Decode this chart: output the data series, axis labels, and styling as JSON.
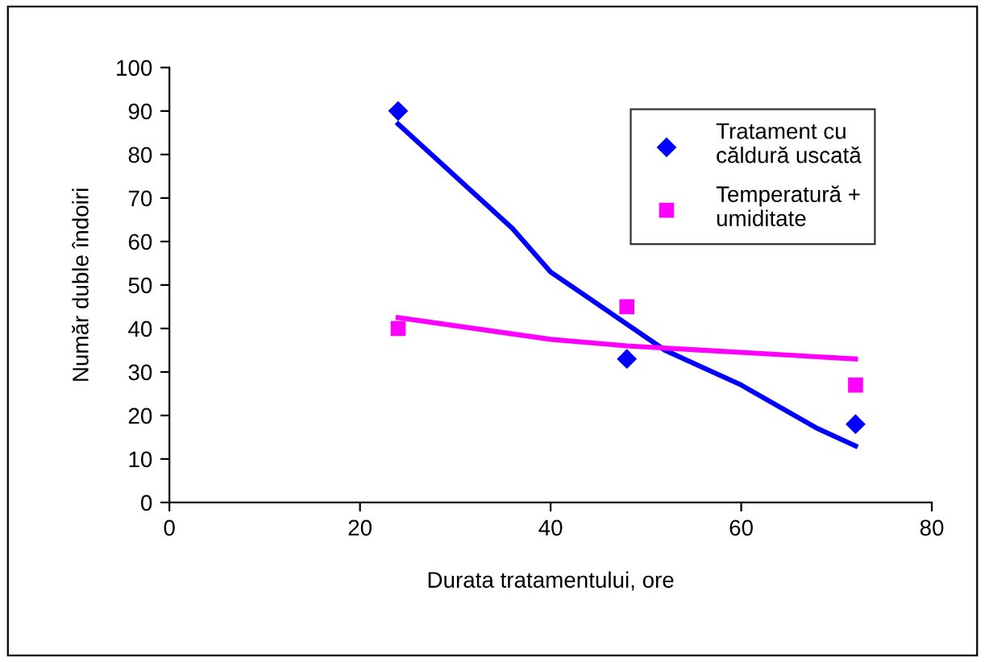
{
  "chart_data": {
    "type": "scatter",
    "xlabel": "Durata tratamentului, ore",
    "ylabel": "Număr duble îndoiri",
    "xlim": [
      0,
      80
    ],
    "xticks": [
      0,
      20,
      40,
      60,
      80
    ],
    "ylim": [
      0,
      100
    ],
    "yticks": [
      0,
      10,
      20,
      30,
      40,
      50,
      60,
      70,
      80,
      90,
      100
    ],
    "grid": false,
    "legend": "top right",
    "series": [
      {
        "name": "Tratament cu căldură uscată",
        "color": "#0000ff",
        "marker": "diamond",
        "x": [
          24,
          48,
          72
        ],
        "values": [
          90,
          33,
          18
        ]
      },
      {
        "name": "Temperatură + umiditate",
        "color": "#ff00ff",
        "marker": "square",
        "x": [
          24,
          48,
          72
        ],
        "values": [
          40,
          45,
          27
        ]
      },
      {
        "type": "line",
        "color": "#0000ff",
        "marker": "none",
        "x": [
          24,
          28,
          32,
          36,
          40,
          44,
          48,
          52,
          56,
          60,
          64,
          68,
          72
        ],
        "values": [
          87,
          79,
          71,
          63,
          53,
          47,
          41,
          35,
          31,
          27,
          22,
          17,
          13
        ]
      },
      {
        "type": "line",
        "color": "#ff00ff",
        "marker": "none",
        "x": [
          24,
          32,
          40,
          48,
          56,
          64,
          72
        ],
        "values": [
          42.5,
          40,
          37.5,
          36,
          35,
          34,
          33
        ]
      }
    ]
  }
}
